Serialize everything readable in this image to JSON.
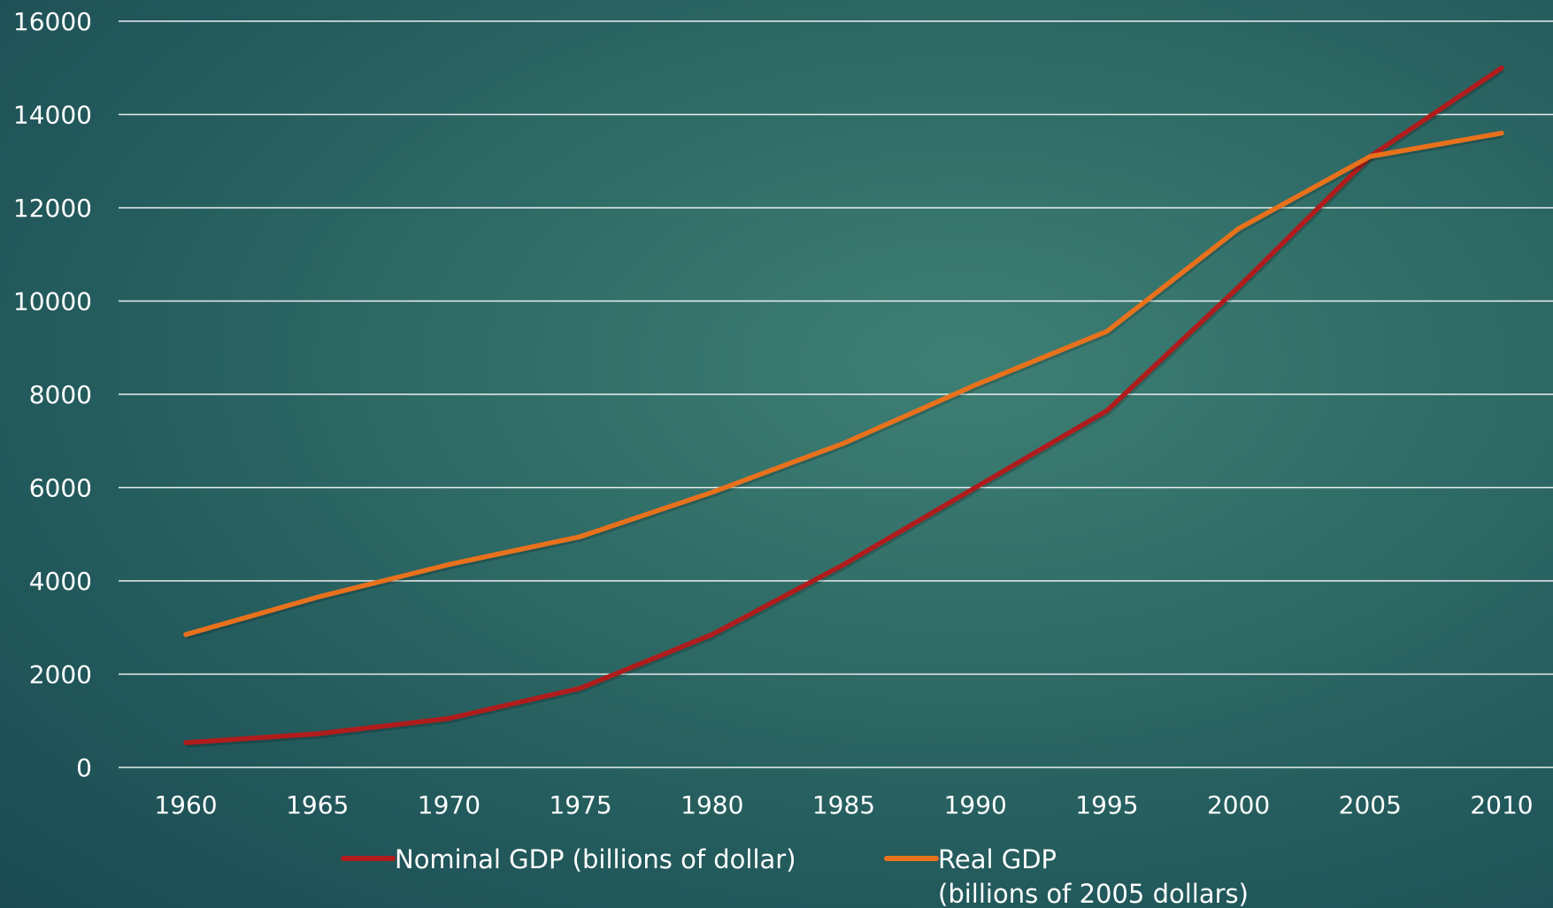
{
  "chart_data": {
    "type": "line",
    "title": "",
    "xlabel": "",
    "ylabel": "",
    "x": [
      "1960",
      "1965",
      "1970",
      "1975",
      "1980",
      "1985",
      "1990",
      "1995",
      "2000",
      "2005",
      "2010"
    ],
    "ylim": [
      0,
      16000
    ],
    "y_ticks": [
      "0",
      "2000",
      "4000",
      "6000",
      "8000",
      "10000",
      "12000",
      "14000",
      "16000"
    ],
    "grid": true,
    "legend_position": "bottom",
    "series": [
      {
        "name": "Nominal GDP (billions of dollar)",
        "name_lines": [
          "Nominal GDP (billions of dollar)"
        ],
        "color": "#b01c1c",
        "values": [
          530,
          720,
          1050,
          1700,
          2850,
          4350,
          6000,
          7650,
          10300,
          13100,
          15000
        ]
      },
      {
        "name": "Real GDP (billions of 2005 dollars)",
        "name_lines": [
          "Real GDP",
          "(billions of 2005 dollars)"
        ],
        "color": "#e8711c",
        "values": [
          2850,
          3650,
          4350,
          4950,
          5900,
          6950,
          8200,
          9350,
          11550,
          13100,
          13600
        ]
      }
    ]
  }
}
